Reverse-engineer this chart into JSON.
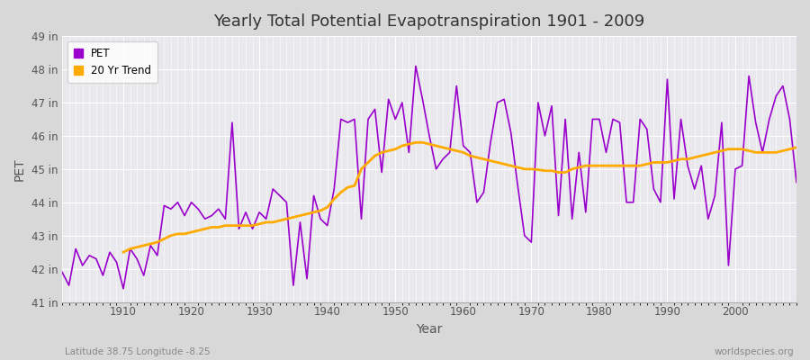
{
  "title": "Yearly Total Potential Evapotranspiration 1901 - 2009",
  "xlabel": "Year",
  "ylabel": "PET",
  "footnote_left": "Latitude 38.75 Longitude -8.25",
  "footnote_right": "worldspecies.org",
  "pet_color": "#9900cc",
  "trend_color": "#ffaa00",
  "bg_color": "#d8d8d8",
  "plot_bg_color": "#e8e8ed",
  "ylim": [
    41,
    49
  ],
  "yticks": [
    41,
    42,
    43,
    44,
    45,
    46,
    47,
    48,
    49
  ],
  "ytick_labels": [
    "41 in",
    "42 in",
    "43 in",
    "44 in",
    "45 in",
    "46 in",
    "47 in",
    "48 in",
    "49 in"
  ],
  "years": [
    1901,
    1902,
    1903,
    1904,
    1905,
    1906,
    1907,
    1908,
    1909,
    1910,
    1911,
    1912,
    1913,
    1914,
    1915,
    1916,
    1917,
    1918,
    1919,
    1920,
    1921,
    1922,
    1923,
    1924,
    1925,
    1926,
    1927,
    1928,
    1929,
    1930,
    1931,
    1932,
    1933,
    1934,
    1935,
    1936,
    1937,
    1938,
    1939,
    1940,
    1941,
    1942,
    1943,
    1944,
    1945,
    1946,
    1947,
    1948,
    1949,
    1950,
    1951,
    1952,
    1953,
    1954,
    1955,
    1956,
    1957,
    1958,
    1959,
    1960,
    1961,
    1962,
    1963,
    1964,
    1965,
    1966,
    1967,
    1968,
    1969,
    1970,
    1971,
    1972,
    1973,
    1974,
    1975,
    1976,
    1977,
    1978,
    1979,
    1980,
    1981,
    1982,
    1983,
    1984,
    1985,
    1986,
    1987,
    1988,
    1989,
    1990,
    1991,
    1992,
    1993,
    1994,
    1995,
    1996,
    1997,
    1998,
    1999,
    2000,
    2001,
    2002,
    2003,
    2004,
    2005,
    2006,
    2007,
    2008,
    2009
  ],
  "pet_values": [
    41.9,
    41.5,
    42.6,
    42.1,
    42.4,
    42.3,
    41.8,
    42.5,
    42.2,
    41.4,
    42.6,
    42.3,
    41.8,
    42.7,
    42.4,
    43.9,
    43.8,
    44.0,
    43.6,
    44.0,
    43.8,
    43.5,
    43.6,
    43.8,
    43.5,
    46.4,
    43.2,
    43.7,
    43.2,
    43.7,
    43.5,
    44.4,
    44.2,
    44.0,
    41.5,
    43.4,
    41.7,
    44.2,
    43.5,
    43.3,
    44.4,
    46.5,
    46.4,
    46.5,
    43.5,
    46.5,
    46.8,
    44.9,
    47.1,
    46.5,
    47.0,
    45.5,
    48.1,
    47.1,
    46.0,
    45.0,
    45.3,
    45.5,
    47.5,
    45.7,
    45.5,
    44.0,
    44.3,
    45.8,
    47.0,
    47.1,
    46.1,
    44.5,
    43.0,
    42.8,
    47.0,
    46.0,
    46.9,
    43.6,
    46.5,
    43.5,
    45.5,
    43.7,
    46.5,
    46.5,
    45.5,
    46.5,
    46.4,
    44.0,
    44.0,
    46.5,
    46.2,
    44.4,
    44.0,
    47.7,
    44.1,
    46.5,
    45.1,
    44.4,
    45.1,
    43.5,
    44.2,
    46.4,
    42.1,
    45.0,
    45.1,
    47.8,
    46.4,
    45.5,
    46.5,
    47.2,
    47.5,
    46.5,
    44.6
  ],
  "trend_years": [
    1910,
    1911,
    1912,
    1913,
    1914,
    1915,
    1916,
    1917,
    1918,
    1919,
    1920,
    1921,
    1922,
    1923,
    1924,
    1925,
    1926,
    1927,
    1928,
    1929,
    1930,
    1931,
    1932,
    1933,
    1934,
    1935,
    1936,
    1937,
    1938,
    1939,
    1940,
    1941,
    1942,
    1943,
    1944,
    1945,
    1946,
    1947,
    1948,
    1949,
    1950,
    1951,
    1952,
    1953,
    1954,
    1955,
    1956,
    1957,
    1958,
    1959,
    1960,
    1961,
    1962,
    1963,
    1964,
    1965,
    1966,
    1967,
    1968,
    1969,
    1970,
    1971,
    1972,
    1973,
    1974,
    1975,
    1976,
    1977,
    1978,
    1979,
    1980,
    1981,
    1982,
    1983,
    1984,
    1985,
    1986,
    1987,
    1988,
    1989,
    1990,
    1991,
    1992,
    1993,
    1994,
    1995,
    1996,
    1997,
    1998,
    1999,
    2000,
    2001,
    2002,
    2003,
    2004,
    2005,
    2006,
    2007,
    2008,
    2009
  ],
  "trend_values": [
    42.5,
    42.6,
    42.65,
    42.7,
    42.75,
    42.8,
    42.9,
    43.0,
    43.05,
    43.05,
    43.1,
    43.15,
    43.2,
    43.25,
    43.25,
    43.3,
    43.3,
    43.3,
    43.3,
    43.3,
    43.35,
    43.4,
    43.4,
    43.45,
    43.5,
    43.55,
    43.6,
    43.65,
    43.7,
    43.75,
    43.85,
    44.1,
    44.3,
    44.45,
    44.5,
    45.0,
    45.2,
    45.4,
    45.5,
    45.55,
    45.6,
    45.7,
    45.75,
    45.8,
    45.8,
    45.75,
    45.7,
    45.65,
    45.6,
    45.55,
    45.5,
    45.4,
    45.35,
    45.3,
    45.25,
    45.2,
    45.15,
    45.1,
    45.05,
    45.0,
    45.0,
    44.98,
    44.95,
    44.95,
    44.9,
    44.9,
    45.0,
    45.05,
    45.1,
    45.1,
    45.1,
    45.1,
    45.1,
    45.1,
    45.1,
    45.1,
    45.1,
    45.15,
    45.2,
    45.2,
    45.2,
    45.25,
    45.3,
    45.3,
    45.35,
    45.4,
    45.45,
    45.5,
    45.55,
    45.6,
    45.6,
    45.6,
    45.55,
    45.5,
    45.5,
    45.5,
    45.5,
    45.55,
    45.6,
    45.65
  ]
}
